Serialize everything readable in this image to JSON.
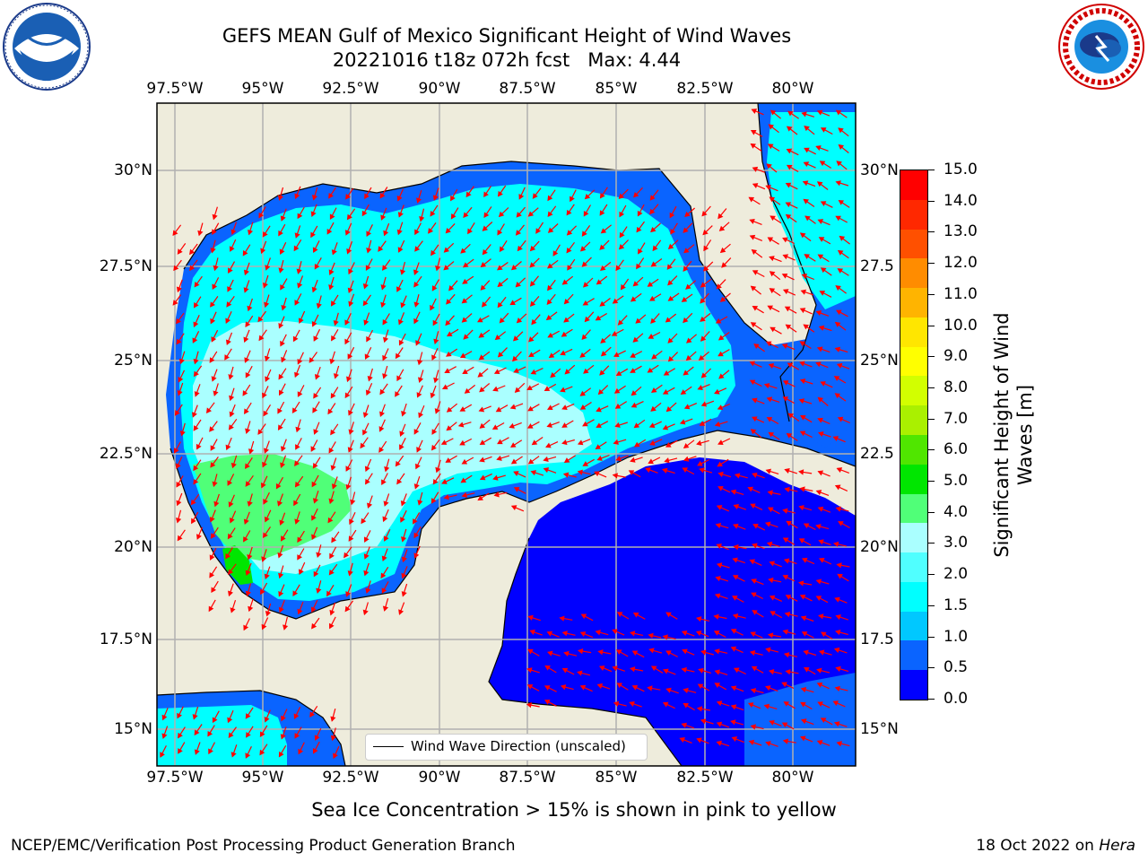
{
  "title": {
    "line1": "GEFS MEAN Gulf of Mexico Significant Height of Wind Waves",
    "line2": "20221016 t18z 072h fcst   Max: 4.44"
  },
  "logos": {
    "left": "noara-logo",
    "right": "national-weather-service-logo"
  },
  "map": {
    "lon_labels": [
      "97.5°W",
      "95°W",
      "92.5°W",
      "90°W",
      "87.5°W",
      "85°W",
      "82.5°W",
      "80°W"
    ],
    "lat_labels_left": [
      "30°N",
      "27.5°N",
      "25°N",
      "22.5°N",
      "20°N",
      "17.5°N",
      "15°N"
    ],
    "lat_labels_right": [
      "30°N",
      "27.5",
      "25°N",
      "22.5",
      "20°N",
      "17.5",
      "15°N"
    ],
    "legend_text": "Wind Wave Direction (unscaled)",
    "land_color": "#eeecdc",
    "arrow_color": "#ff0000"
  },
  "colorbar": {
    "label": "Significant Height of Wind Waves [m]",
    "tick_labels": [
      "0.0",
      "0.5",
      "1.0",
      "1.5",
      "2.0",
      "3.0",
      "4.0",
      "5.0",
      "6.0",
      "7.0",
      "8.0",
      "9.0",
      "10.0",
      "11.0",
      "12.0",
      "13.0",
      "14.0",
      "15.0"
    ],
    "colors": [
      "#0000ff",
      "#0a64ff",
      "#00c8ff",
      "#00ffff",
      "#50ffff",
      "#aaffff",
      "#50ff78",
      "#00e600",
      "#50e600",
      "#aaf000",
      "#d2ff00",
      "#ffff00",
      "#ffe600",
      "#ffb400",
      "#ff8c00",
      "#ff5000",
      "#ff2800",
      "#ff0000"
    ]
  },
  "notes": {
    "sea_ice": "Sea Ice Concentration > 15% is shown in pink to yellow"
  },
  "footer": {
    "left": "NCEP/EMC/Verification Post Processing Product Generation Branch",
    "right_prefix": "18 Oct 2022 on ",
    "right_machine": "Hera"
  }
}
